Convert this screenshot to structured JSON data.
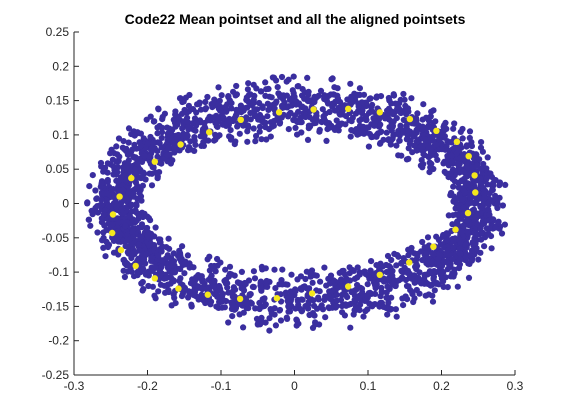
{
  "chart_data": {
    "type": "scatter",
    "title": "Code22 Mean pointset and all the aligned pointsets",
    "xlabel": "",
    "ylabel": "",
    "xlim": [
      -0.3,
      0.3
    ],
    "ylim": [
      -0.25,
      0.25
    ],
    "xticks": [
      -0.3,
      -0.2,
      -0.1,
      0,
      0.1,
      0.2,
      0.3
    ],
    "xtick_labels": [
      "-0.3",
      "-0.2",
      "-0.1",
      "0",
      "0.1",
      "0.2",
      "0.3"
    ],
    "yticks": [
      -0.25,
      -0.2,
      -0.15,
      -0.1,
      -0.05,
      0,
      0.05,
      0.1,
      0.15,
      0.2,
      0.25
    ],
    "ytick_labels": [
      "-0.25",
      "-0.2",
      "-0.15",
      "-0.1",
      "-0.05",
      "0",
      "0.05",
      "0.1",
      "0.15",
      "0.2",
      "0.25"
    ],
    "grid": false,
    "legend": "none",
    "series": [
      {
        "role": "aligned-pointsets",
        "color": "#3a2e9f",
        "ring": {
          "center": [
            0.004,
            -0.001
          ],
          "outer_semi_axes": [
            0.286,
            0.186
          ],
          "inner_semi_axes": [
            0.207,
            0.094
          ]
        },
        "point_count": 2600
      },
      {
        "role": "mean-pointset",
        "color": "#f5e71d",
        "x": [
          -0.073,
          -0.021,
          0.026,
          0.073,
          0.116,
          0.157,
          0.193,
          0.221,
          0.237,
          0.245,
          0.246,
          0.236,
          0.219,
          0.189,
          0.156,
          0.116,
          0.073,
          0.024,
          -0.024,
          -0.074,
          -0.118,
          -0.158,
          -0.19,
          -0.216,
          -0.236,
          -0.248,
          -0.247,
          -0.238,
          -0.222,
          -0.19,
          -0.155,
          -0.116
        ],
        "y": [
          0.122,
          0.133,
          0.137,
          0.138,
          0.133,
          0.123,
          0.106,
          0.09,
          0.069,
          0.041,
          0.016,
          -0.014,
          -0.038,
          -0.063,
          -0.086,
          -0.104,
          -0.121,
          -0.131,
          -0.138,
          -0.139,
          -0.133,
          -0.124,
          -0.109,
          -0.091,
          -0.068,
          -0.043,
          -0.016,
          0.01,
          0.037,
          0.061,
          0.086,
          0.104
        ]
      }
    ]
  }
}
